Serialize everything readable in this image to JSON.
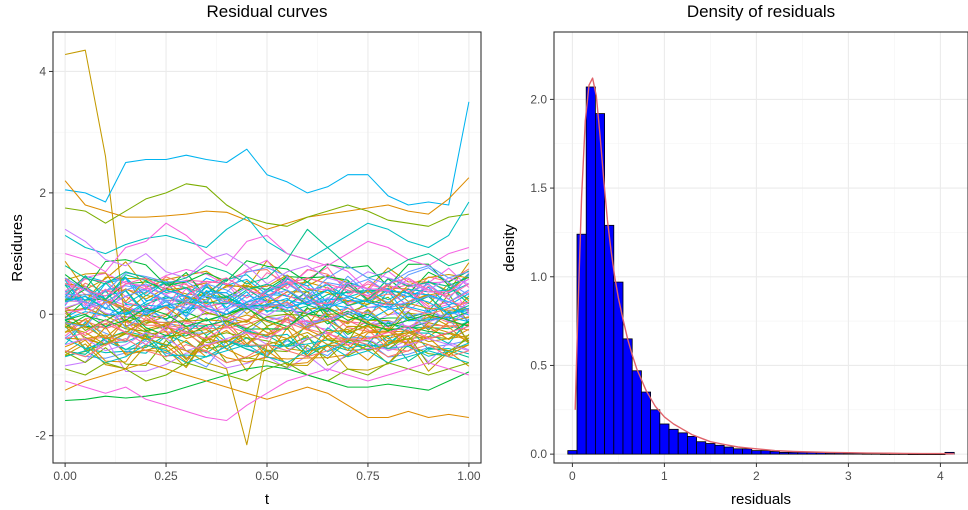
{
  "chart_data": [
    {
      "type": "line",
      "title": "Residual curves",
      "xlabel": "t",
      "ylabel": "Residures",
      "xlim": [
        -0.03,
        1.03
      ],
      "ylim": [
        -2.45,
        4.65
      ],
      "xticks": [
        0,
        0.25,
        0.5,
        0.75,
        1
      ],
      "xtick_labels": [
        "0.00",
        "0.25",
        "0.50",
        "0.75",
        "1.00"
      ],
      "yticks": [
        -2,
        0,
        2,
        4
      ],
      "ytick_labels": [
        "-2",
        "0",
        "2",
        "4"
      ],
      "grid": true,
      "legend": "none",
      "x": [
        0,
        0.05,
        0.1,
        0.15,
        0.2,
        0.25,
        0.3,
        0.35,
        0.4,
        0.45,
        0.5,
        0.55,
        0.6,
        0.65,
        0.7,
        0.75,
        0.8,
        0.85,
        0.9,
        0.95,
        1
      ],
      "palette": [
        "#c49a00",
        "#cd9600",
        "#7cae00",
        "#00ba38",
        "#00c08b",
        "#00bfc4",
        "#00b4f0",
        "#619cff",
        "#c77cff",
        "#f564e3",
        "#ff64b0",
        "#f8766d",
        "#de8c00"
      ],
      "series": [
        {
          "color": "#c49a00",
          "values": [
            4.28,
            4.35,
            2.6,
            -0.2,
            -0.35,
            -0.4,
            -0.3,
            -0.25,
            -0.45,
            -0.3,
            -0.35,
            -0.2,
            -0.4,
            -0.3,
            -0.25,
            -0.4,
            -0.35,
            -0.3,
            -0.45,
            -0.4,
            -0.35
          ]
        },
        {
          "color": "#00b4f0",
          "values": [
            2.05,
            2.0,
            1.85,
            2.5,
            2.55,
            2.55,
            2.62,
            2.55,
            2.5,
            2.72,
            2.3,
            2.18,
            2.0,
            2.1,
            2.3,
            2.3,
            1.95,
            1.8,
            1.85,
            1.8,
            3.5
          ]
        },
        {
          "color": "#de8c00",
          "values": [
            2.2,
            1.8,
            1.7,
            1.6,
            1.6,
            1.62,
            1.65,
            1.7,
            1.68,
            1.55,
            1.4,
            1.5,
            1.6,
            1.65,
            1.7,
            1.75,
            1.8,
            1.7,
            1.65,
            1.9,
            2.25
          ]
        },
        {
          "color": "#7cae00",
          "values": [
            1.75,
            1.7,
            1.5,
            1.7,
            1.9,
            2.0,
            2.15,
            2.1,
            1.8,
            1.6,
            1.5,
            1.45,
            1.6,
            1.7,
            1.8,
            1.7,
            1.55,
            1.5,
            1.45,
            1.6,
            1.65
          ]
        },
        {
          "color": "#00bfc4",
          "values": [
            1.3,
            1.1,
            1.0,
            1.15,
            1.25,
            1.3,
            1.2,
            1.1,
            1.4,
            1.6,
            1.2,
            1.0,
            0.9,
            1.1,
            1.3,
            1.5,
            1.4,
            1.2,
            1.1,
            1.3,
            1.85
          ]
        },
        {
          "color": "#f564e3",
          "values": [
            1.0,
            0.9,
            0.7,
            1.1,
            1.2,
            1.5,
            1.3,
            1.0,
            0.8,
            1.2,
            1.3,
            1.0,
            0.9,
            0.8,
            1.0,
            1.2,
            1.1,
            0.9,
            0.8,
            1.0,
            1.1
          ]
        },
        {
          "color": "#c77cff",
          "values": [
            1.4,
            1.2,
            0.9,
            0.8,
            1.0,
            0.7,
            0.6,
            0.9,
            1.0,
            0.8,
            0.5,
            0.7,
            0.8,
            0.6,
            0.5,
            0.7,
            0.6,
            0.5,
            0.4,
            0.6,
            0.5
          ]
        },
        {
          "color": "#00c08b",
          "values": [
            0.8,
            0.6,
            0.5,
            0.7,
            0.6,
            0.5,
            0.6,
            0.8,
            0.7,
            0.5,
            0.6,
            0.9,
            1.4,
            1.1,
            0.8,
            0.6,
            0.7,
            0.9,
            1.0,
            0.8,
            0.9
          ]
        },
        {
          "color": "#ff64b0",
          "values": [
            0.5,
            0.4,
            0.3,
            0.5,
            0.6,
            0.4,
            0.3,
            0.5,
            0.6,
            0.4,
            0.3,
            0.5,
            0.6,
            0.5,
            0.4,
            0.3,
            0.5,
            0.6,
            0.4,
            0.3,
            0.5
          ]
        },
        {
          "color": "#619cff",
          "values": [
            0.3,
            0.2,
            0.1,
            0.3,
            0.4,
            0.2,
            0.1,
            0.3,
            0.2,
            0.1,
            0.3,
            0.4,
            0.2,
            0.1,
            0.3,
            0.2,
            0.1,
            0.2,
            0.3,
            0.2,
            0.4
          ]
        },
        {
          "color": "#f8766d",
          "values": [
            0.1,
            0.0,
            0.2,
            0.1,
            -0.1,
            0.0,
            0.2,
            0.1,
            0.0,
            -0.1,
            0.1,
            0.2,
            0.0,
            -0.1,
            0.1,
            0.0,
            0.2,
            0.1,
            0.0,
            0.1,
            0.2
          ]
        },
        {
          "color": "#00ba38",
          "values": [
            -0.1,
            0.0,
            -0.2,
            -0.1,
            0.1,
            0.0,
            -0.2,
            -0.1,
            0.0,
            0.1,
            -0.1,
            -0.2,
            0.0,
            0.1,
            -0.1,
            0.0,
            -0.2,
            -0.1,
            0.0,
            -0.1,
            -0.2
          ]
        },
        {
          "color": "#cd9600",
          "values": [
            -0.3,
            -0.2,
            -0.4,
            -0.3,
            -0.1,
            -0.2,
            -0.4,
            -0.3,
            -0.2,
            -0.1,
            -0.3,
            -0.4,
            -0.2,
            -0.1,
            -0.3,
            -0.2,
            -0.4,
            -0.3,
            -0.2,
            -0.3,
            -0.4
          ]
        },
        {
          "color": "#c77cff",
          "values": [
            -0.5,
            -0.4,
            -0.6,
            -0.5,
            -0.3,
            -0.4,
            -0.6,
            -0.5,
            -0.4,
            -0.3,
            -0.5,
            -0.6,
            -0.4,
            -0.3,
            -0.5,
            -0.4,
            -0.6,
            -0.5,
            -0.4,
            -0.5,
            -0.6
          ]
        },
        {
          "color": "#00bfc4",
          "values": [
            -0.7,
            -0.6,
            -0.8,
            -0.7,
            -0.5,
            -0.6,
            -0.8,
            -0.7,
            -0.6,
            -0.5,
            -0.7,
            -0.8,
            -0.6,
            -0.5,
            -0.7,
            -0.6,
            -0.8,
            -0.7,
            -0.6,
            -0.7,
            -0.8
          ]
        },
        {
          "color": "#7cae00",
          "values": [
            -0.9,
            -1.0,
            -0.8,
            -0.9,
            -1.1,
            -1.0,
            -0.8,
            -0.9,
            -1.0,
            -1.1,
            -0.9,
            -0.8,
            -1.0,
            -1.1,
            -0.9,
            -1.0,
            -0.8,
            -0.9,
            -1.0,
            -0.9,
            -0.8
          ]
        },
        {
          "color": "#00ba38",
          "values": [
            -1.42,
            -1.4,
            -1.35,
            -1.38,
            -1.35,
            -1.3,
            -1.2,
            -1.1,
            -1.0,
            -0.9,
            -0.85,
            -0.9,
            -1.0,
            -1.1,
            -1.2,
            -1.2,
            -1.15,
            -1.2,
            -1.25,
            -1.1,
            -0.95
          ]
        },
        {
          "color": "#de8c00",
          "values": [
            -1.25,
            -1.1,
            -1.0,
            -0.9,
            -0.8,
            -0.9,
            -1.0,
            -1.1,
            -1.2,
            -1.3,
            -1.4,
            -1.3,
            -1.2,
            -1.3,
            -1.5,
            -1.7,
            -1.7,
            -1.6,
            -1.7,
            -1.65,
            -1.7
          ]
        },
        {
          "color": "#c49a00",
          "values": [
            -0.2,
            -0.3,
            -0.5,
            -0.3,
            -0.4,
            -0.5,
            -0.6,
            -0.8,
            -0.9,
            -2.15,
            -0.5,
            -0.4,
            -0.3,
            -0.5,
            -0.4,
            -0.6,
            -0.5,
            -0.4,
            -0.5,
            -0.6,
            -0.5
          ]
        },
        {
          "color": "#f564e3",
          "values": [
            -1.1,
            -1.2,
            -1.3,
            -1.2,
            -1.4,
            -1.5,
            -1.6,
            -1.7,
            -1.75,
            -1.5,
            -1.3,
            -1.1,
            -1.0,
            -0.9,
            -1.0,
            -1.1,
            -1.0,
            -0.9,
            -0.8,
            -0.9,
            -1.0
          ]
        },
        {
          "color": "#619cff",
          "values": [
            0.6,
            0.4,
            0.2,
            0.4,
            0.5,
            0.3,
            0.2,
            0.5,
            0.4,
            0.2,
            0.4,
            0.5,
            0.3,
            0.6,
            0.8,
            0.6,
            0.5,
            0.7,
            0.8,
            0.6,
            0.7
          ]
        },
        {
          "color": "#ff64b0",
          "values": [
            -0.4,
            -0.3,
            -0.1,
            -0.3,
            -0.5,
            -0.2,
            -0.3,
            -0.4,
            -0.2,
            -0.3,
            -0.4,
            -0.2,
            -0.1,
            -0.3,
            -0.5,
            -0.4,
            -0.3,
            -0.2,
            -0.4,
            -0.3,
            -0.2
          ]
        },
        {
          "color": "#00b4f0",
          "values": [
            0.2,
            0.3,
            0.1,
            0.0,
            0.2,
            0.4,
            0.3,
            0.1,
            0.0,
            0.2,
            0.3,
            0.1,
            0.2,
            0.4,
            0.3,
            0.2,
            0.1,
            0.3,
            0.2,
            0.0,
            0.1
          ]
        },
        {
          "color": "#f8766d",
          "values": [
            -0.6,
            -0.7,
            -0.5,
            -0.4,
            -0.6,
            -0.7,
            -0.5,
            -0.6,
            -0.8,
            -0.7,
            -0.5,
            -0.6,
            -0.7,
            -0.6,
            -0.4,
            -0.5,
            -0.7,
            -0.6,
            -0.5,
            -0.7,
            -0.6
          ]
        }
      ]
    },
    {
      "type": "bar",
      "title": "Density of residuals",
      "xlabel": "residuals",
      "ylabel": "density",
      "xlim": [
        -0.2,
        4.3
      ],
      "ylim": [
        -0.05,
        2.38
      ],
      "xticks": [
        0,
        1,
        2,
        3,
        4
      ],
      "xtick_labels": [
        "0",
        "1",
        "2",
        "3",
        "4"
      ],
      "yticks": [
        0,
        0.5,
        1,
        1.5,
        2
      ],
      "ytick_labels": [
        "0.0",
        "0.5",
        "1.0",
        "1.5",
        "2.0"
      ],
      "grid": true,
      "legend": "none",
      "bar_fill": "#0000ff",
      "bar_edge": "#000000",
      "curve_color": "#e0636b",
      "bin_width": 0.1,
      "bin_starts": [
        -0.05,
        0.05,
        0.15,
        0.25,
        0.35,
        0.45,
        0.55,
        0.65,
        0.75,
        0.85,
        0.95,
        1.05,
        1.15,
        1.25,
        1.35,
        1.45,
        1.55,
        1.65,
        1.75,
        1.85,
        1.95,
        2.05,
        2.15,
        2.25,
        2.35,
        2.45,
        2.55,
        2.65,
        2.75,
        2.85,
        2.95,
        3.05,
        3.15,
        3.25,
        3.35,
        3.45,
        3.55,
        3.65,
        3.75,
        3.85,
        3.95,
        4.05
      ],
      "densities": [
        0.02,
        1.24,
        2.07,
        1.92,
        1.29,
        0.97,
        0.65,
        0.47,
        0.35,
        0.25,
        0.17,
        0.14,
        0.12,
        0.1,
        0.07,
        0.06,
        0.05,
        0.04,
        0.03,
        0.03,
        0.02,
        0.02,
        0.015,
        0.01,
        0.01,
        0.01,
        0.01,
        0.008,
        0.006,
        0.006,
        0.005,
        0.005,
        0.004,
        0.004,
        0.003,
        0.003,
        0.003,
        0.002,
        0.002,
        0.002,
        0.002,
        0.01
      ],
      "density_x": [
        0.03,
        0.06,
        0.1,
        0.14,
        0.18,
        0.22,
        0.26,
        0.3,
        0.34,
        0.38,
        0.42,
        0.46,
        0.5,
        0.55,
        0.6,
        0.65,
        0.7,
        0.8,
        0.9,
        1.0,
        1.1,
        1.2,
        1.3,
        1.4,
        1.5,
        1.6,
        1.7,
        1.8,
        1.9,
        2.0,
        2.2,
        2.4,
        2.6,
        2.8,
        3.0,
        3.2,
        3.4,
        3.6,
        3.8,
        4.0,
        4.15
      ],
      "density_y": [
        0.25,
        0.8,
        1.45,
        1.88,
        2.08,
        2.12,
        2.02,
        1.8,
        1.55,
        1.32,
        1.15,
        1.0,
        0.88,
        0.76,
        0.65,
        0.56,
        0.48,
        0.36,
        0.27,
        0.21,
        0.17,
        0.14,
        0.11,
        0.09,
        0.07,
        0.06,
        0.05,
        0.04,
        0.035,
        0.03,
        0.02,
        0.015,
        0.012,
        0.01,
        0.008,
        0.006,
        0.005,
        0.004,
        0.003,
        0.003,
        0.002
      ]
    }
  ]
}
